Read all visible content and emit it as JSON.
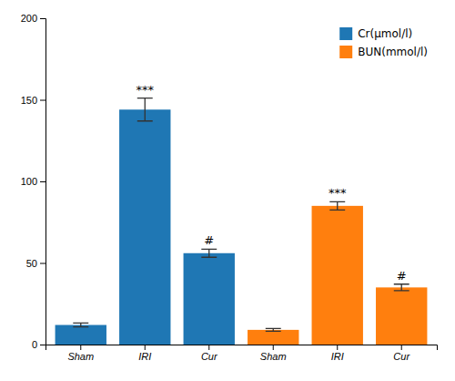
{
  "chart_data": {
    "type": "bar",
    "categories": [
      "Sham",
      "IRI",
      "Cur",
      "Sham",
      "IRI",
      "Cur"
    ],
    "series": [
      {
        "name": "Cr(μmol/l)",
        "values": [
          12,
          144,
          56,
          null,
          null,
          null
        ],
        "errors": [
          1.2,
          7,
          2.5,
          null,
          null,
          null
        ],
        "annotations": [
          null,
          "***",
          "#",
          null,
          null,
          null
        ]
      },
      {
        "name": "BUN(mmol/l)",
        "values": [
          null,
          null,
          null,
          9,
          85,
          35
        ],
        "errors": [
          null,
          null,
          null,
          0.8,
          2.5,
          2.0
        ],
        "annotations": [
          null,
          null,
          null,
          null,
          "***",
          "#"
        ]
      }
    ],
    "ylim": [
      0,
      200
    ],
    "yticks": [
      0,
      50,
      100,
      150,
      200
    ],
    "legend": "upper right"
  }
}
